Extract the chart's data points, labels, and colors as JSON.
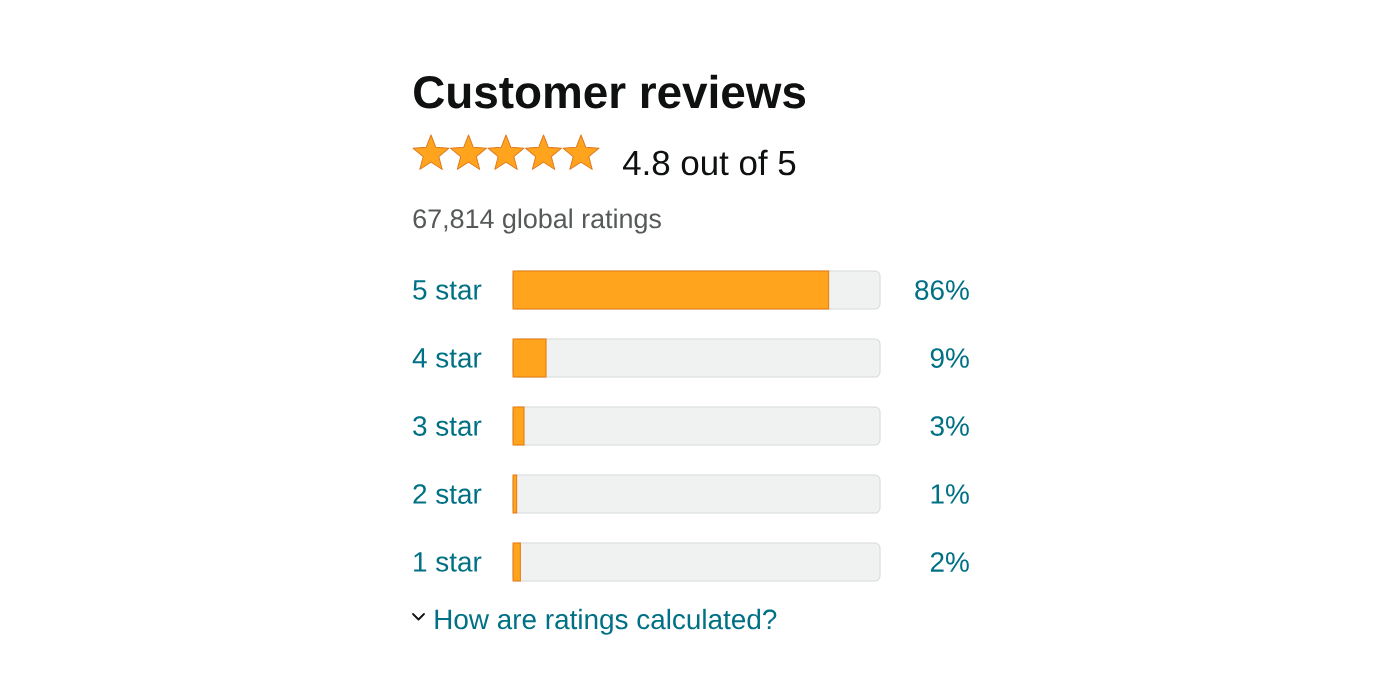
{
  "chart_data": {
    "type": "bar",
    "orientation": "horizontal",
    "title": "Customer reviews",
    "categories": [
      "5 star",
      "4 star",
      "3 star",
      "2 star",
      "1 star"
    ],
    "values": [
      86,
      9,
      3,
      1,
      2
    ],
    "value_labels": [
      "86%",
      "9%",
      "3%",
      "1%",
      "2%"
    ],
    "color": "#ffa41c",
    "xlim": [
      0,
      100
    ],
    "tick_labels": "y",
    "annotations": [
      "4.8 out of 5",
      "67,814 global ratings",
      "How are ratings calculated?"
    ]
  }
}
